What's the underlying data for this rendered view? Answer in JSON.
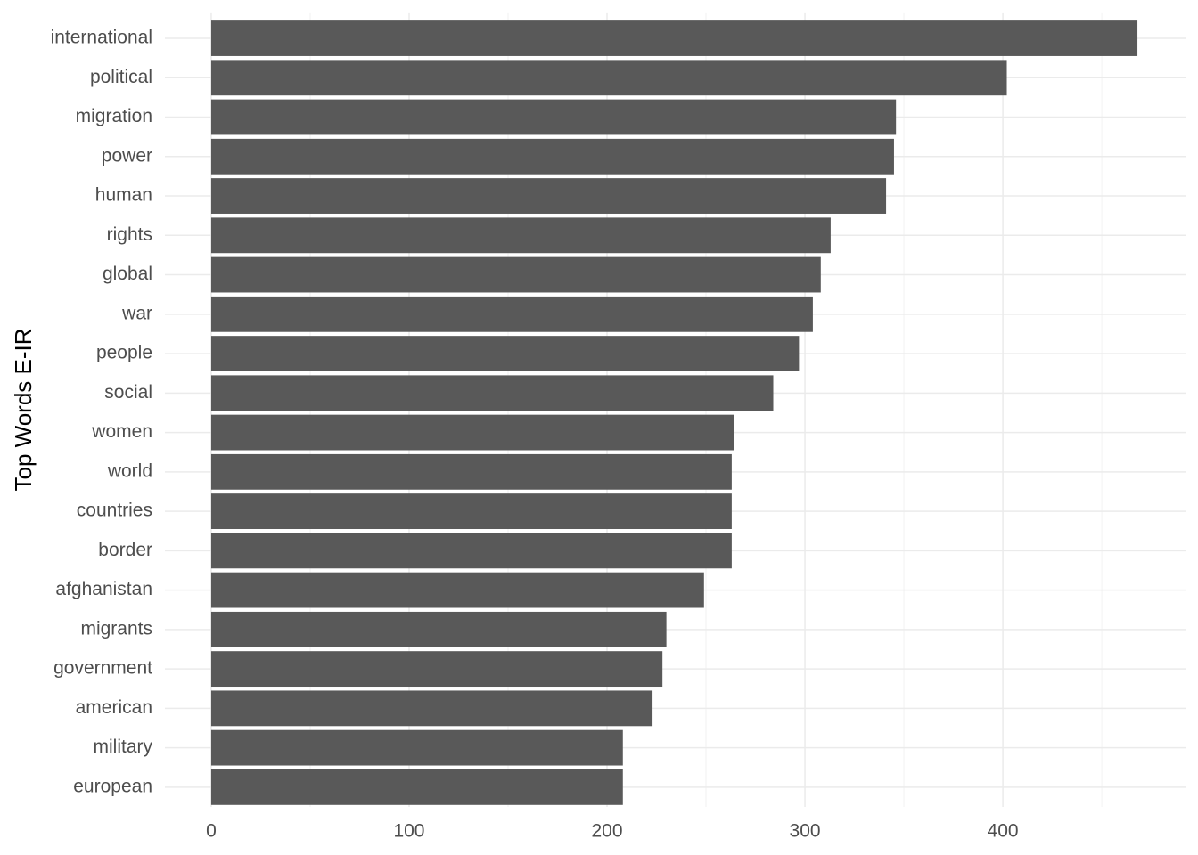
{
  "chart_data": {
    "type": "bar",
    "orientation": "horizontal",
    "y_label": "Top Words E-IR",
    "categories": [
      "international",
      "political",
      "migration",
      "power",
      "human",
      "rights",
      "global",
      "war",
      "people",
      "social",
      "women",
      "world",
      "countries",
      "border",
      "afghanistan",
      "migrants",
      "government",
      "american",
      "military",
      "european"
    ],
    "values": [
      468,
      402,
      346,
      345,
      341,
      313,
      308,
      304,
      297,
      284,
      264,
      263,
      263,
      263,
      249,
      230,
      228,
      223,
      208,
      208
    ],
    "color": "#595959",
    "xlim": [
      -23.4,
      492.3
    ],
    "xticks": [
      0,
      100,
      200,
      300,
      400
    ],
    "xminor": [
      50,
      150,
      250,
      350,
      450
    ],
    "grid": true
  }
}
